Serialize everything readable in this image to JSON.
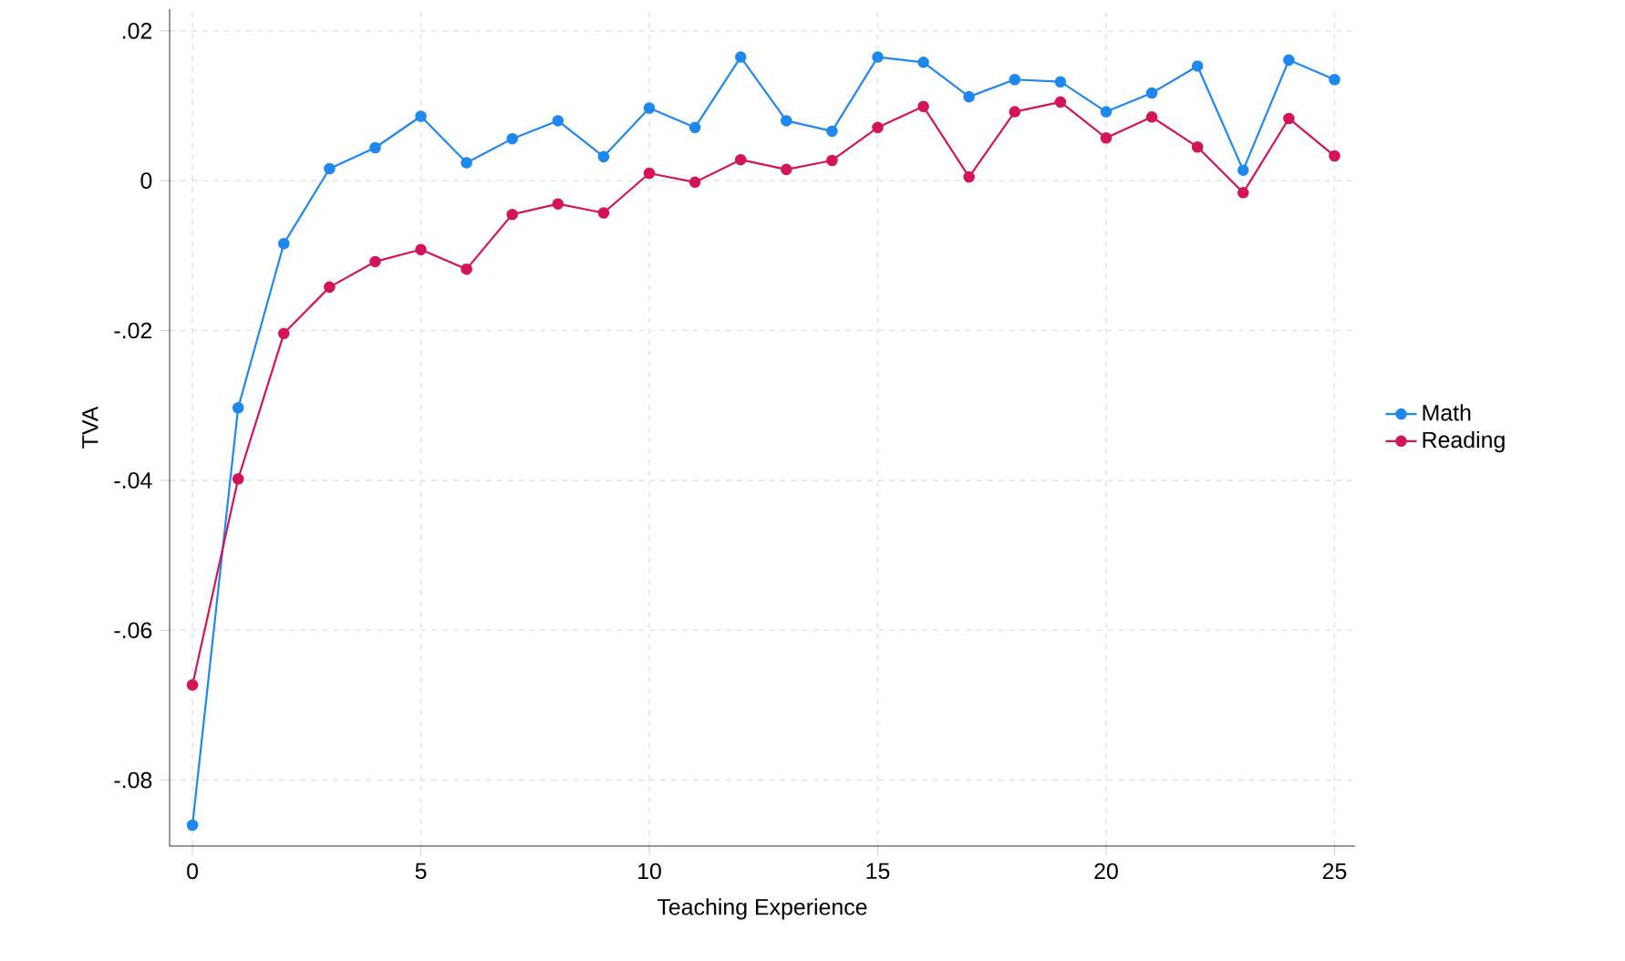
{
  "chart_data": {
    "type": "line",
    "xlabel": "Teaching Experience",
    "ylabel": "TVA",
    "x": [
      0,
      1,
      2,
      3,
      4,
      5,
      6,
      7,
      8,
      9,
      10,
      11,
      12,
      13,
      14,
      15,
      16,
      17,
      18,
      19,
      20,
      21,
      22,
      23,
      24,
      25
    ],
    "series": [
      {
        "name": "Math",
        "color": "#1e88f0",
        "values": [
          -0.086,
          -0.0303,
          -0.0084,
          0.0016,
          0.0044,
          0.0086,
          0.0024,
          0.0056,
          0.008,
          0.0032,
          0.0097,
          0.0071,
          0.0165,
          0.008,
          0.0066,
          0.0165,
          0.0158,
          0.0112,
          0.0135,
          0.0132,
          0.0092,
          0.0117,
          0.0153,
          0.0014,
          0.0161,
          0.0135
        ]
      },
      {
        "name": "Reading",
        "color": "#d4145a",
        "values": [
          -0.0673,
          -0.0398,
          -0.0204,
          -0.0142,
          -0.0108,
          -0.0092,
          -0.0118,
          -0.0045,
          -0.0031,
          -0.0043,
          0.001,
          -0.0002,
          0.0028,
          0.0015,
          0.0027,
          0.0071,
          0.0099,
          0.0005,
          0.0092,
          0.0105,
          0.0057,
          0.0085,
          0.0045,
          -0.0016,
          0.0083,
          0.0033
        ]
      }
    ],
    "xlim": [
      -0.5,
      25.45
    ],
    "ylim": [
      -0.0888,
      0.0229
    ],
    "xticks": [
      0,
      5,
      10,
      15,
      20,
      25
    ],
    "yticks": [
      {
        "value": -0.08,
        "label": "-.08"
      },
      {
        "value": -0.06,
        "label": "-.06"
      },
      {
        "value": -0.04,
        "label": "-.04"
      },
      {
        "value": -0.02,
        "label": "-.02"
      },
      {
        "value": 0,
        "label": "0"
      },
      {
        "value": 0.02,
        "label": ".02"
      }
    ],
    "grid": true,
    "legend": "right",
    "marker": "circle",
    "line_style": "solid"
  }
}
